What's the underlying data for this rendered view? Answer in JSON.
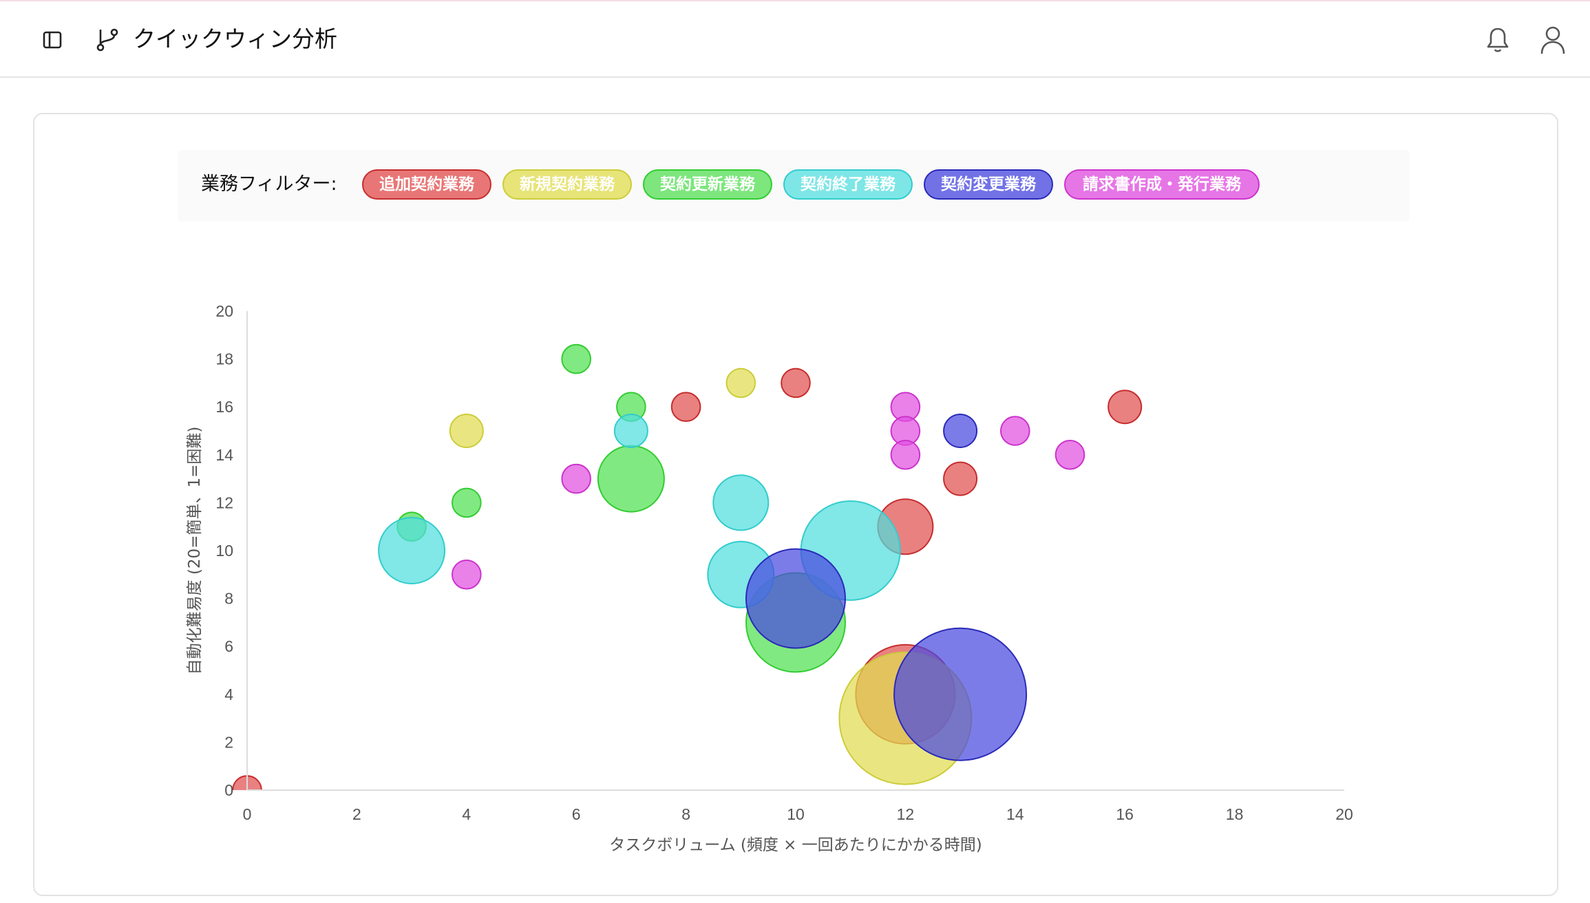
{
  "header": {
    "title": "クイックウィン分析",
    "icons": [
      "sidebar-toggle-icon",
      "git-branch-icon",
      "bell-icon",
      "user-icon"
    ]
  },
  "filter": {
    "label": "業務フィルター:",
    "chips": [
      {
        "label": "追加契約業務",
        "bg": "#e87676",
        "border": "#c62d2d"
      },
      {
        "label": "新規契約業務",
        "bg": "#e7e478",
        "border": "#cccc3a"
      },
      {
        "label": "契約更新業務",
        "bg": "#7de67d",
        "border": "#33cc33"
      },
      {
        "label": "契約終了業務",
        "bg": "#7ee6e6",
        "border": "#33cccc"
      },
      {
        "label": "契約変更業務",
        "bg": "#7272e6",
        "border": "#2a2ab8"
      },
      {
        "label": "請求書作成・発行業務",
        "bg": "#e676e6",
        "border": "#cc33cc"
      }
    ]
  },
  "chart_data": {
    "type": "bubble",
    "xlabel": "タスクボリューム (頻度 × 一回あたりにかかる時間)",
    "ylabel": "自動化難易度 (20=簡単、1=困難)",
    "xlim": [
      0,
      20
    ],
    "ylim": [
      0,
      20
    ],
    "x_ticks": [
      "0",
      "2",
      "4",
      "6",
      "8",
      "10",
      "12",
      "14",
      "16",
      "18",
      "20"
    ],
    "y_ticks": [
      "0",
      "2",
      "4",
      "6",
      "8",
      "10",
      "12",
      "14",
      "16",
      "18",
      "20"
    ],
    "grid": false,
    "series": [
      {
        "name": "追加契約業務",
        "fill": "#e05050",
        "stroke": "#c62d2d",
        "points": [
          [
            0,
            0,
            1.3
          ],
          [
            8,
            16,
            1.3
          ],
          [
            10,
            17,
            1.3
          ],
          [
            12,
            11,
            2.5
          ],
          [
            13,
            13,
            1.5
          ],
          [
            16,
            16,
            1.5
          ],
          [
            12,
            4,
            4.5
          ]
        ]
      },
      {
        "name": "新規契約業務",
        "fill": "#e0dc50",
        "stroke": "#cccc3a",
        "points": [
          [
            4,
            15,
            1.5
          ],
          [
            9,
            17,
            1.3
          ],
          [
            12,
            3,
            6.0
          ]
        ]
      },
      {
        "name": "契約更新業務",
        "fill": "#50e050",
        "stroke": "#33cc33",
        "points": [
          [
            6,
            18,
            1.3
          ],
          [
            7,
            16,
            1.3
          ],
          [
            7,
            13,
            3.0
          ],
          [
            4,
            12,
            1.3
          ],
          [
            3,
            11,
            1.3
          ],
          [
            10,
            7,
            4.5
          ]
        ]
      },
      {
        "name": "契約終了業務",
        "fill": "#50dede",
        "stroke": "#33cccc",
        "points": [
          [
            7,
            15,
            1.5
          ],
          [
            3,
            10,
            3.0
          ],
          [
            9,
            12,
            2.5
          ],
          [
            9,
            9,
            3.0
          ],
          [
            11,
            10,
            4.5
          ]
        ]
      },
      {
        "name": "契約変更業務",
        "fill": "#4a4ae0",
        "stroke": "#2a2ab8",
        "points": [
          [
            13,
            15,
            1.5
          ],
          [
            10,
            8,
            4.5
          ],
          [
            13,
            4,
            6.0
          ]
        ]
      },
      {
        "name": "請求書作成・発行業務",
        "fill": "#e050e0",
        "stroke": "#cc33cc",
        "points": [
          [
            12,
            16,
            1.3
          ],
          [
            12,
            15,
            1.3
          ],
          [
            12,
            14,
            1.3
          ],
          [
            14,
            15,
            1.3
          ],
          [
            15,
            14,
            1.3
          ],
          [
            6,
            13,
            1.3
          ],
          [
            4,
            9,
            1.3
          ]
        ]
      }
    ]
  }
}
